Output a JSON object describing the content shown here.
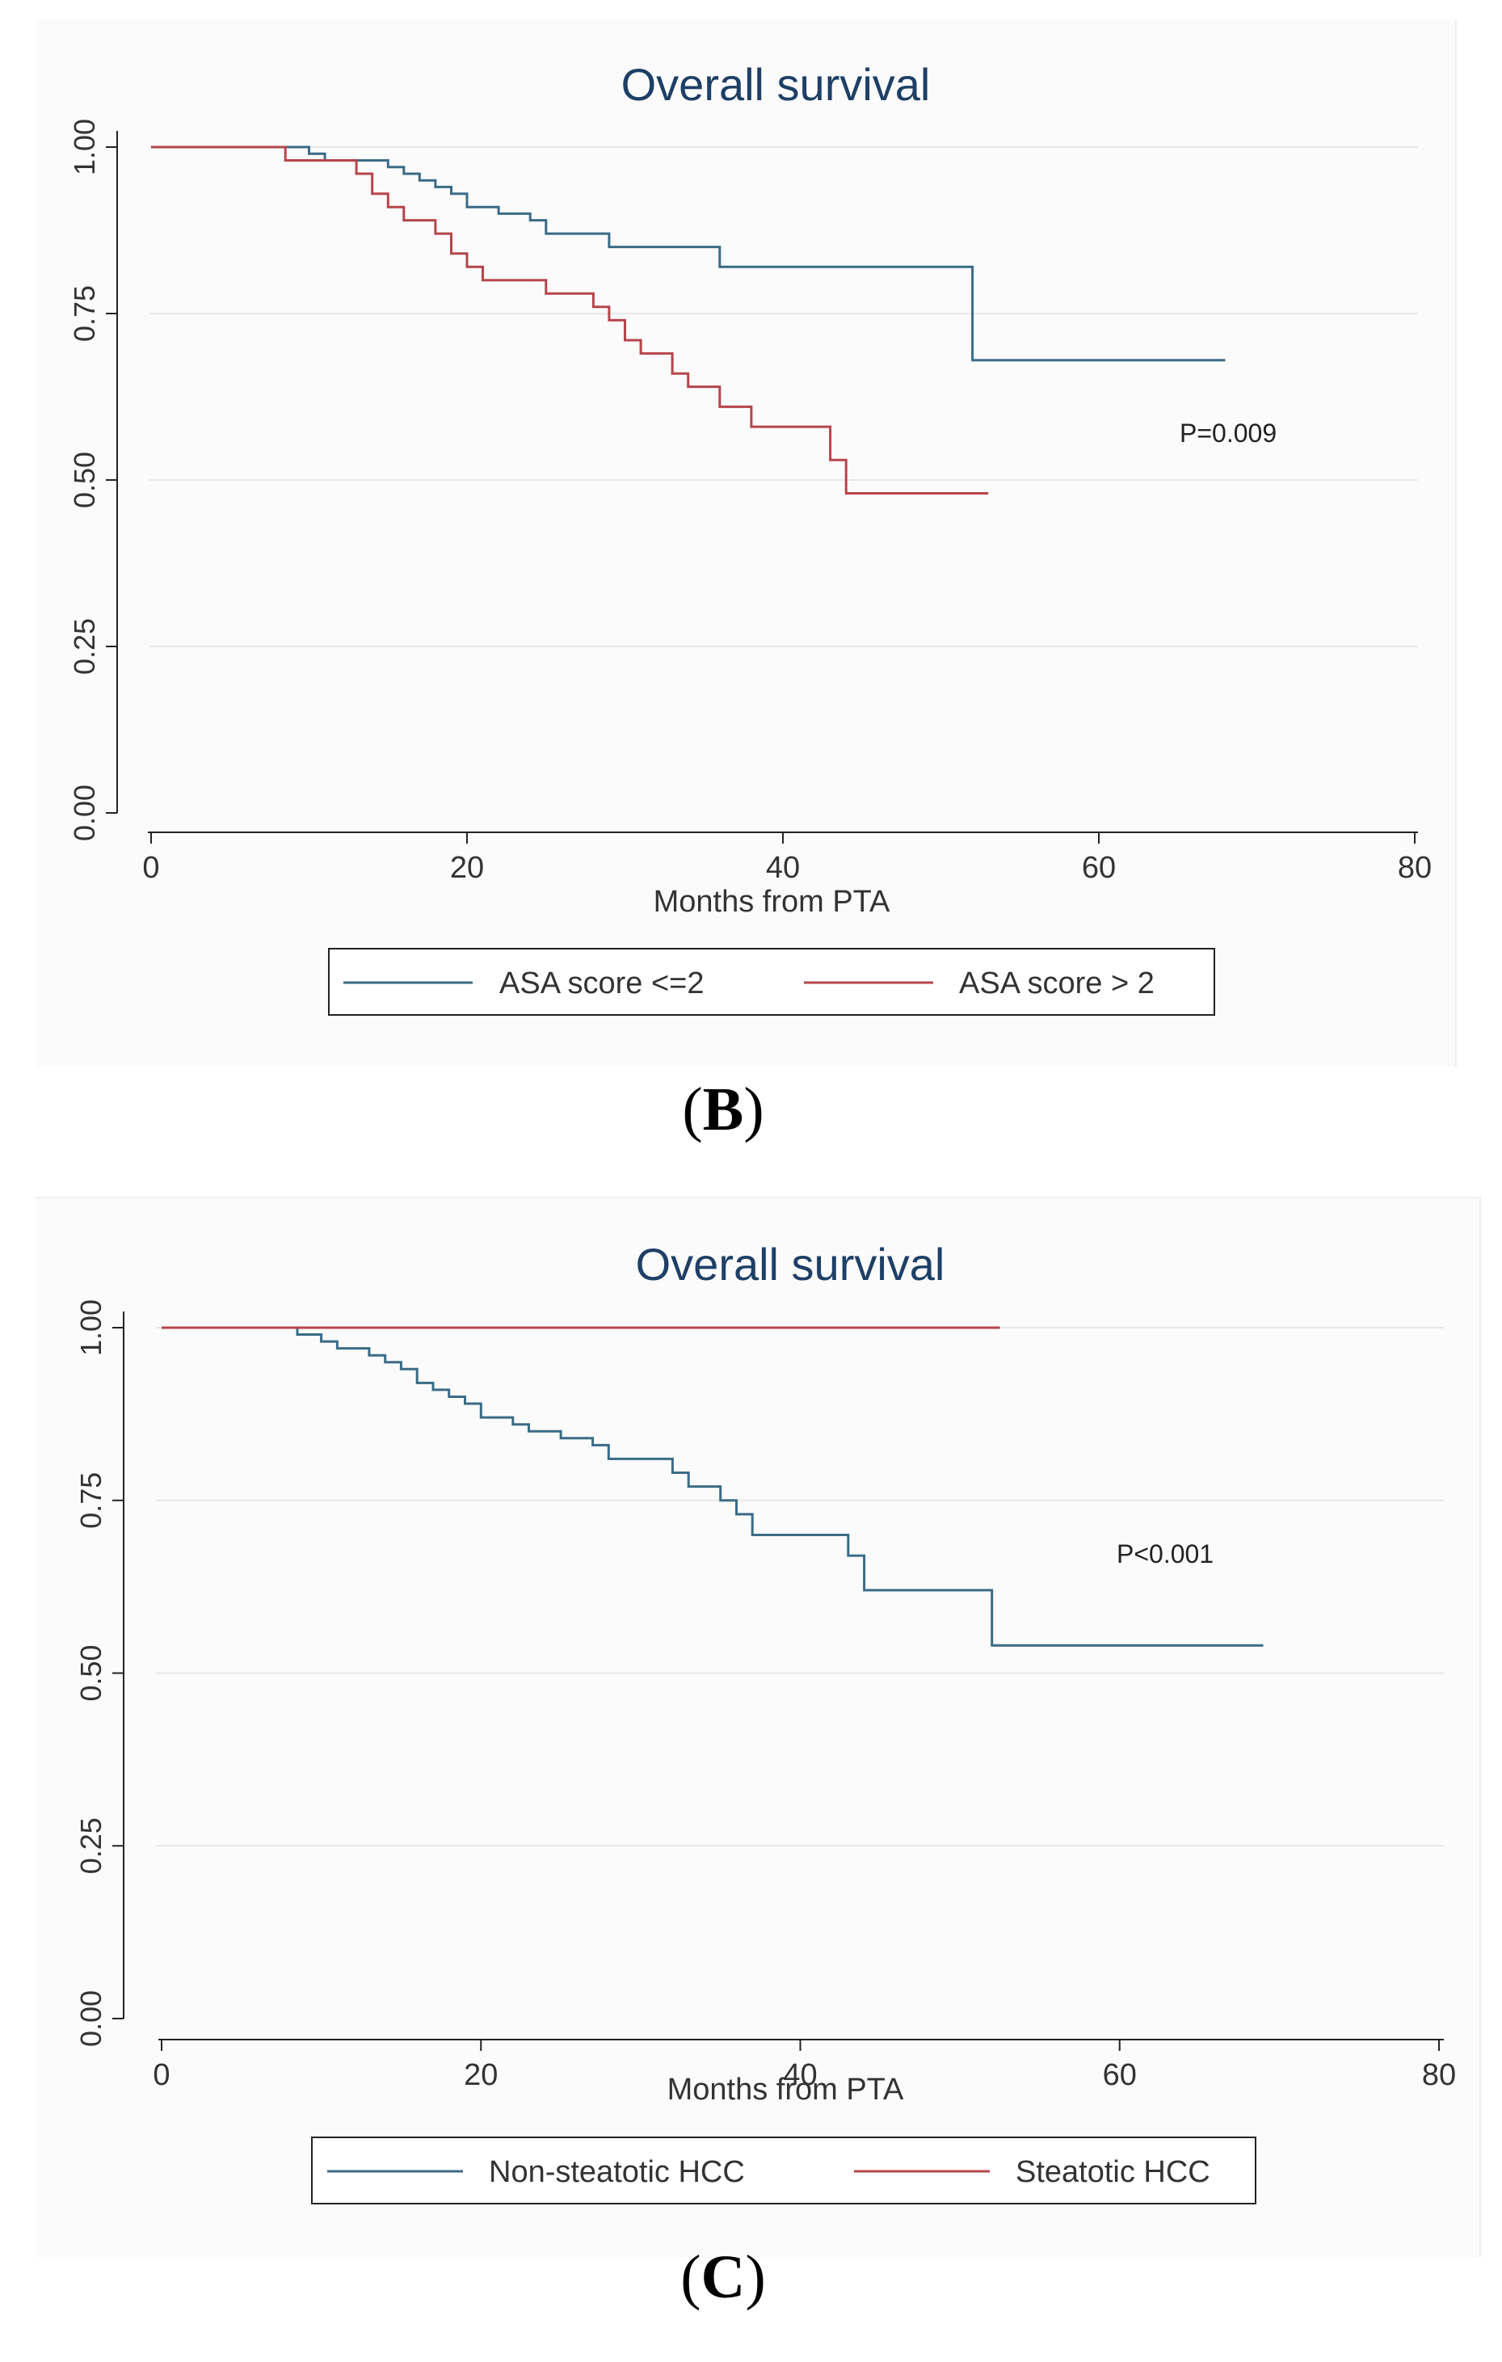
{
  "panels": [
    {
      "id": "b",
      "caption_open": "(",
      "caption_letter": "B",
      "caption_close": ")",
      "pvalue": "P=0.009",
      "legend_colors": [
        "#3b6b86",
        "#b5454b"
      ]
    },
    {
      "id": "c",
      "caption_open": "(",
      "caption_letter": "C",
      "caption_close": ")",
      "pvalue": "P<0.001",
      "legend_colors": [
        "#3b6b86",
        "#b5454b"
      ]
    }
  ],
  "chart_data": [
    {
      "type": "line",
      "step": true,
      "title": "Overall survival",
      "xlabel": "Months from PTA",
      "ylabel": "",
      "xlim": [
        0,
        80
      ],
      "ylim": [
        0,
        1
      ],
      "xticks": [
        "0",
        "20",
        "40",
        "60",
        "80"
      ],
      "yticks": [
        "0.00",
        "0.25",
        "0.50",
        "0.75",
        "1.00"
      ],
      "grid": true,
      "legend_position": "bottom",
      "annotation": "P=0.009",
      "series": [
        {
          "name": "ASA score <=2",
          "color": "#3b6b86",
          "points": [
            [
              0,
              1.0
            ],
            [
              10,
              1.0
            ],
            [
              10,
              0.99
            ],
            [
              11,
              0.99
            ],
            [
              11,
              0.98
            ],
            [
              15,
              0.98
            ],
            [
              15,
              0.97
            ],
            [
              16,
              0.97
            ],
            [
              16,
              0.96
            ],
            [
              17,
              0.96
            ],
            [
              17,
              0.95
            ],
            [
              18,
              0.95
            ],
            [
              18,
              0.94
            ],
            [
              19,
              0.94
            ],
            [
              19,
              0.93
            ],
            [
              20,
              0.93
            ],
            [
              20,
              0.91
            ],
            [
              22,
              0.91
            ],
            [
              22,
              0.9
            ],
            [
              24,
              0.9
            ],
            [
              24,
              0.89
            ],
            [
              25,
              0.89
            ],
            [
              25,
              0.87
            ],
            [
              29,
              0.87
            ],
            [
              29,
              0.85
            ],
            [
              36,
              0.85
            ],
            [
              36,
              0.82
            ],
            [
              52,
              0.82
            ],
            [
              52,
              0.68
            ],
            [
              68,
              0.68
            ]
          ]
        },
        {
          "name": "ASA score > 2",
          "color": "#b5454b",
          "points": [
            [
              0,
              1.0
            ],
            [
              8.5,
              1.0
            ],
            [
              8.5,
              0.98
            ],
            [
              13,
              0.98
            ],
            [
              13,
              0.96
            ],
            [
              14,
              0.96
            ],
            [
              14,
              0.93
            ],
            [
              15,
              0.93
            ],
            [
              15,
              0.91
            ],
            [
              16,
              0.91
            ],
            [
              16,
              0.89
            ],
            [
              18,
              0.89
            ],
            [
              18,
              0.87
            ],
            [
              19,
              0.87
            ],
            [
              19,
              0.84
            ],
            [
              20,
              0.84
            ],
            [
              20,
              0.82
            ],
            [
              21,
              0.82
            ],
            [
              21,
              0.8
            ],
            [
              25,
              0.8
            ],
            [
              25,
              0.78
            ],
            [
              28,
              0.78
            ],
            [
              28,
              0.76
            ],
            [
              29,
              0.76
            ],
            [
              29,
              0.74
            ],
            [
              30,
              0.74
            ],
            [
              30,
              0.71
            ],
            [
              31,
              0.71
            ],
            [
              31,
              0.69
            ],
            [
              33,
              0.69
            ],
            [
              33,
              0.66
            ],
            [
              34,
              0.66
            ],
            [
              34,
              0.64
            ],
            [
              36,
              0.64
            ],
            [
              36,
              0.61
            ],
            [
              38,
              0.61
            ],
            [
              38,
              0.58
            ],
            [
              43,
              0.58
            ],
            [
              43,
              0.53
            ],
            [
              44,
              0.53
            ],
            [
              44,
              0.48
            ],
            [
              53,
              0.48
            ]
          ]
        }
      ]
    },
    {
      "type": "line",
      "step": true,
      "title": "Overall survival",
      "xlabel": "Months from PTA",
      "ylabel": "",
      "xlim": [
        0,
        80
      ],
      "ylim": [
        0,
        1
      ],
      "xticks": [
        "0",
        "20",
        "40",
        "60",
        "80"
      ],
      "yticks": [
        "0.00",
        "0.25",
        "0.50",
        "0.75",
        "1.00"
      ],
      "grid": true,
      "legend_position": "bottom",
      "annotation": "P<0.001",
      "series": [
        {
          "name": "Non-steatotic HCC",
          "color": "#3b6b86",
          "points": [
            [
              0,
              1.0
            ],
            [
              8.5,
              1.0
            ],
            [
              8.5,
              0.99
            ],
            [
              10,
              0.99
            ],
            [
              10,
              0.98
            ],
            [
              11,
              0.98
            ],
            [
              11,
              0.97
            ],
            [
              13,
              0.97
            ],
            [
              13,
              0.96
            ],
            [
              14,
              0.96
            ],
            [
              14,
              0.95
            ],
            [
              15,
              0.95
            ],
            [
              15,
              0.94
            ],
            [
              16,
              0.94
            ],
            [
              16,
              0.92
            ],
            [
              17,
              0.92
            ],
            [
              17,
              0.91
            ],
            [
              18,
              0.91
            ],
            [
              18,
              0.9
            ],
            [
              19,
              0.9
            ],
            [
              19,
              0.89
            ],
            [
              20,
              0.89
            ],
            [
              20,
              0.87
            ],
            [
              22,
              0.87
            ],
            [
              22,
              0.86
            ],
            [
              23,
              0.86
            ],
            [
              23,
              0.85
            ],
            [
              25,
              0.85
            ],
            [
              25,
              0.84
            ],
            [
              27,
              0.84
            ],
            [
              27,
              0.83
            ],
            [
              28,
              0.83
            ],
            [
              28,
              0.81
            ],
            [
              32,
              0.81
            ],
            [
              32,
              0.79
            ],
            [
              33,
              0.79
            ],
            [
              33,
              0.77
            ],
            [
              35,
              0.77
            ],
            [
              35,
              0.75
            ],
            [
              36,
              0.75
            ],
            [
              36,
              0.73
            ],
            [
              37,
              0.73
            ],
            [
              37,
              0.7
            ],
            [
              43,
              0.7
            ],
            [
              43,
              0.67
            ],
            [
              44,
              0.67
            ],
            [
              44,
              0.62
            ],
            [
              52,
              0.62
            ],
            [
              52,
              0.54
            ],
            [
              69,
              0.54
            ]
          ]
        },
        {
          "name": "Steatotic HCC",
          "color": "#b5454b",
          "points": [
            [
              0,
              1.0
            ],
            [
              52.5,
              1.0
            ]
          ]
        }
      ]
    }
  ]
}
